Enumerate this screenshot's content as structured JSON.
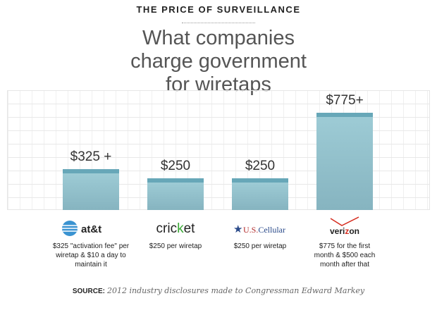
{
  "kicker": "THE PRICE OF SURVEILLANCE",
  "headline": "What companies charge government for wiretaps",
  "chart_data": {
    "type": "bar",
    "categories": [
      "AT&T",
      "Cricket",
      "U.S. Cellular",
      "Verizon"
    ],
    "values": [
      325,
      250,
      250,
      775
    ],
    "data_labels": [
      "$325 +",
      "$250",
      "$250",
      "$775+"
    ],
    "descriptions": [
      "$325 \"activation fee\" per wiretap & $10 a day to maintain it",
      "$250 per wiretap",
      "$250 per wiretap",
      "$775 for the first month & $500 each month after that"
    ],
    "ylim": [
      0,
      950
    ],
    "grid": true,
    "bar_color": "#8fbfca",
    "bar_top_color": "#67a7b8"
  },
  "logos": [
    "at&t",
    "cricket",
    "US.Cellular",
    "verizon"
  ],
  "source": {
    "label": "SOURCE:",
    "text": "2012 industry disclosures made to Congressman Edward Markey"
  }
}
